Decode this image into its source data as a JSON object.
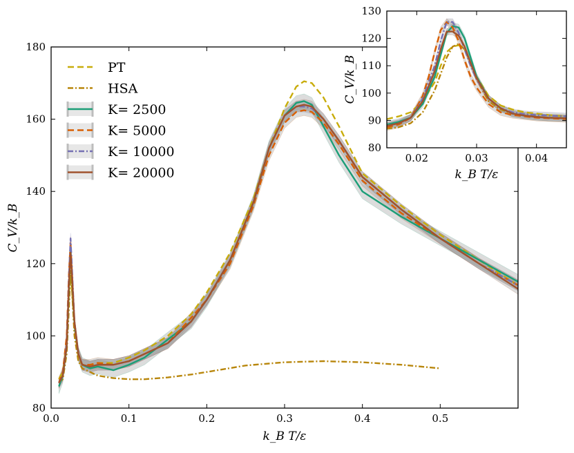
{
  "chart_data": [
    {
      "type": "line",
      "title": "",
      "xlabel": "k_B T/ε",
      "ylabel": "C_V/k_B",
      "xlim": [
        0.0,
        0.6
      ],
      "ylim": [
        80,
        180
      ],
      "xticks": [
        0.0,
        0.1,
        0.2,
        0.3,
        0.4,
        0.5
      ],
      "xtick_labels": [
        "0.0",
        "0.1",
        "0.2",
        "0.3",
        "0.4",
        "0.5"
      ],
      "yticks": [
        80,
        100,
        120,
        140,
        160,
        180
      ],
      "ytick_labels": [
        "80",
        "100",
        "120",
        "140",
        "160",
        "180"
      ],
      "legend_position": "top-left",
      "series": [
        {
          "name": "PT",
          "color": "#c8ac0a",
          "style": "dashed",
          "x": [
            0.01,
            0.015,
            0.02,
            0.023,
            0.025,
            0.027,
            0.03,
            0.035,
            0.04,
            0.05,
            0.06,
            0.08,
            0.1,
            0.12,
            0.15,
            0.18,
            0.2,
            0.23,
            0.26,
            0.28,
            0.3,
            0.315,
            0.325,
            0.335,
            0.35,
            0.37,
            0.4,
            0.45,
            0.5,
            0.55,
            0.6
          ],
          "y": [
            88,
            90,
            98,
            112,
            117,
            112,
            102,
            94,
            92,
            92,
            92.5,
            92.5,
            94,
            96,
            100,
            106,
            112,
            123,
            138,
            152,
            163,
            169,
            170.5,
            170,
            166,
            158,
            145,
            136,
            128,
            121,
            114
          ]
        },
        {
          "name": "HSA",
          "color": "#b8860b",
          "style": "dashdot",
          "x": [
            0.01,
            0.015,
            0.02,
            0.023,
            0.025,
            0.027,
            0.03,
            0.035,
            0.04,
            0.05,
            0.06,
            0.08,
            0.1,
            0.12,
            0.15,
            0.18,
            0.2,
            0.25,
            0.3,
            0.35,
            0.4,
            0.45,
            0.5
          ],
          "y": [
            87,
            88,
            95,
            108,
            118,
            112,
            100,
            93,
            91,
            90,
            89,
            88.3,
            88,
            88,
            88.5,
            89.3,
            90,
            91.8,
            92.7,
            93,
            92.7,
            92,
            91
          ]
        },
        {
          "name": "K= 2500",
          "color": "#1b9e77",
          "style": "solid",
          "band": 2.0,
          "x": [
            0.01,
            0.015,
            0.02,
            0.023,
            0.025,
            0.027,
            0.03,
            0.035,
            0.04,
            0.05,
            0.06,
            0.07,
            0.08,
            0.1,
            0.12,
            0.15,
            0.18,
            0.2,
            0.23,
            0.26,
            0.28,
            0.3,
            0.315,
            0.325,
            0.335,
            0.35,
            0.37,
            0.4,
            0.45,
            0.5,
            0.55,
            0.6
          ],
          "y": [
            86,
            89,
            97,
            114,
            124,
            116,
            103,
            95,
            92,
            91,
            91.5,
            91,
            90.5,
            92,
            94,
            99,
            104,
            110,
            121,
            137,
            152,
            161,
            164.5,
            165,
            164,
            158,
            150,
            140,
            133,
            127,
            121,
            115
          ]
        },
        {
          "name": "K= 5000",
          "color": "#d95f02",
          "style": "dashed",
          "band": 1.5,
          "x": [
            0.01,
            0.015,
            0.02,
            0.023,
            0.025,
            0.027,
            0.03,
            0.035,
            0.04,
            0.05,
            0.06,
            0.08,
            0.1,
            0.12,
            0.15,
            0.18,
            0.2,
            0.23,
            0.26,
            0.28,
            0.3,
            0.315,
            0.325,
            0.335,
            0.35,
            0.37,
            0.4,
            0.45,
            0.5,
            0.55,
            0.6
          ],
          "y": [
            87,
            90,
            100,
            118,
            126,
            117,
            103,
            95,
            92,
            92,
            92.5,
            92,
            93,
            95,
            98,
            105,
            110,
            120,
            136,
            150,
            159,
            162,
            162.5,
            162,
            159,
            153,
            143,
            134,
            127,
            120,
            114
          ]
        },
        {
          "name": "K= 10000",
          "color": "#7570b3",
          "style": "dashdot",
          "band": 1.5,
          "x": [
            0.01,
            0.015,
            0.02,
            0.023,
            0.025,
            0.027,
            0.03,
            0.035,
            0.04,
            0.05,
            0.06,
            0.08,
            0.1,
            0.12,
            0.15,
            0.18,
            0.2,
            0.23,
            0.26,
            0.28,
            0.3,
            0.315,
            0.325,
            0.335,
            0.35,
            0.37,
            0.4,
            0.45,
            0.5,
            0.55,
            0.6
          ],
          "y": [
            87,
            89,
            98,
            117,
            127,
            118,
            104,
            95,
            92,
            91.5,
            92,
            92,
            93,
            95,
            98,
            104,
            110,
            121,
            137,
            152,
            161,
            163.5,
            163.5,
            163,
            160,
            154,
            144,
            135,
            127,
            120,
            114
          ]
        },
        {
          "name": "K= 20000",
          "color": "#a0522d",
          "style": "solid",
          "band": 1.5,
          "x": [
            0.01,
            0.015,
            0.02,
            0.023,
            0.025,
            0.027,
            0.03,
            0.035,
            0.04,
            0.05,
            0.06,
            0.08,
            0.1,
            0.12,
            0.15,
            0.18,
            0.2,
            0.23,
            0.26,
            0.28,
            0.3,
            0.315,
            0.325,
            0.335,
            0.35,
            0.37,
            0.4,
            0.45,
            0.5,
            0.55,
            0.6
          ],
          "y": [
            87,
            89,
            97,
            115,
            123,
            116,
            104,
            95,
            92,
            91.5,
            92,
            92,
            93,
            95,
            98,
            104,
            110,
            121,
            137,
            152,
            161,
            163.5,
            164,
            163.5,
            160,
            154,
            144,
            135,
            127,
            120,
            113
          ]
        }
      ]
    },
    {
      "type": "line",
      "title": "",
      "xlabel": "k_B T/ε",
      "ylabel": "C_V/k_B",
      "xlim": [
        0.015,
        0.045
      ],
      "ylim": [
        80,
        130
      ],
      "xticks": [
        0.02,
        0.03,
        0.04
      ],
      "xtick_labels": [
        "0.02",
        "0.03",
        "0.04"
      ],
      "yticks": [
        80,
        90,
        100,
        110,
        120,
        130
      ],
      "ytick_labels": [
        "80",
        "90",
        "100",
        "110",
        "120",
        "130"
      ],
      "series": [
        {
          "name": "PT",
          "color": "#c8ac0a",
          "style": "dashed",
          "x": [
            0.015,
            0.017,
            0.019,
            0.021,
            0.023,
            0.024,
            0.025,
            0.026,
            0.027,
            0.028,
            0.029,
            0.03,
            0.032,
            0.034,
            0.036,
            0.038,
            0.04,
            0.042,
            0.045
          ],
          "y": [
            90.5,
            91.5,
            93,
            97,
            104,
            110,
            115,
            117,
            117.5,
            116,
            111,
            106,
            99,
            95.5,
            94,
            93,
            92.5,
            92,
            91.5
          ]
        },
        {
          "name": "HSA",
          "color": "#b8860b",
          "style": "dashdot",
          "x": [
            0.015,
            0.017,
            0.019,
            0.021,
            0.023,
            0.024,
            0.025,
            0.026,
            0.027,
            0.028,
            0.029,
            0.03,
            0.032,
            0.034,
            0.036,
            0.038,
            0.04,
            0.042,
            0.045
          ],
          "y": [
            87,
            87.5,
            89,
            93,
            101,
            107,
            113,
            117,
            118,
            116,
            111,
            105,
            97,
            94,
            92.5,
            91.8,
            91.3,
            91,
            90.8
          ]
        },
        {
          "name": "K= 2500",
          "color": "#1b9e77",
          "style": "solid",
          "band": 1.2,
          "x": [
            0.015,
            0.017,
            0.019,
            0.021,
            0.023,
            0.024,
            0.025,
            0.026,
            0.027,
            0.028,
            0.029,
            0.03,
            0.032,
            0.034,
            0.036,
            0.038,
            0.04,
            0.042,
            0.045
          ],
          "y": [
            88.5,
            89.5,
            91,
            96,
            106,
            114,
            122,
            124.5,
            124,
            120,
            113,
            106,
            98,
            94.5,
            92.5,
            91.8,
            91.3,
            91,
            90.8
          ]
        },
        {
          "name": "K= 5000",
          "color": "#d95f02",
          "style": "dashed",
          "band": 1.2,
          "x": [
            0.015,
            0.017,
            0.019,
            0.021,
            0.022,
            0.023,
            0.024,
            0.025,
            0.026,
            0.027,
            0.028,
            0.029,
            0.03,
            0.032,
            0.034,
            0.036,
            0.038,
            0.04,
            0.042,
            0.045
          ],
          "y": [
            87.5,
            88.5,
            91,
            99,
            106,
            115,
            123,
            126,
            124,
            119,
            112,
            106,
            102,
            96,
            93,
            92,
            91.5,
            91,
            90.8,
            90.5
          ]
        },
        {
          "name": "K= 10000",
          "color": "#7570b3",
          "style": "dashdot",
          "band": 1.2,
          "x": [
            0.015,
            0.017,
            0.019,
            0.021,
            0.023,
            0.024,
            0.025,
            0.026,
            0.027,
            0.028,
            0.029,
            0.03,
            0.032,
            0.034,
            0.036,
            0.038,
            0.04,
            0.042,
            0.045
          ],
          "y": [
            88,
            89,
            91,
            98,
            110,
            119,
            126,
            126,
            122,
            116,
            110,
            105,
            98,
            94.5,
            93,
            92.3,
            92,
            91.8,
            91.5
          ]
        },
        {
          "name": "K= 20000",
          "color": "#a0522d",
          "style": "solid",
          "band": 1.2,
          "x": [
            0.015,
            0.017,
            0.019,
            0.021,
            0.023,
            0.024,
            0.025,
            0.026,
            0.027,
            0.028,
            0.029,
            0.03,
            0.032,
            0.034,
            0.036,
            0.038,
            0.04,
            0.042,
            0.045
          ],
          "y": [
            88,
            89,
            91,
            97,
            108,
            116,
            122.5,
            122.5,
            121,
            117,
            111,
            105.5,
            98,
            94.5,
            92.5,
            91.8,
            91.3,
            91,
            90.8
          ]
        }
      ]
    }
  ]
}
